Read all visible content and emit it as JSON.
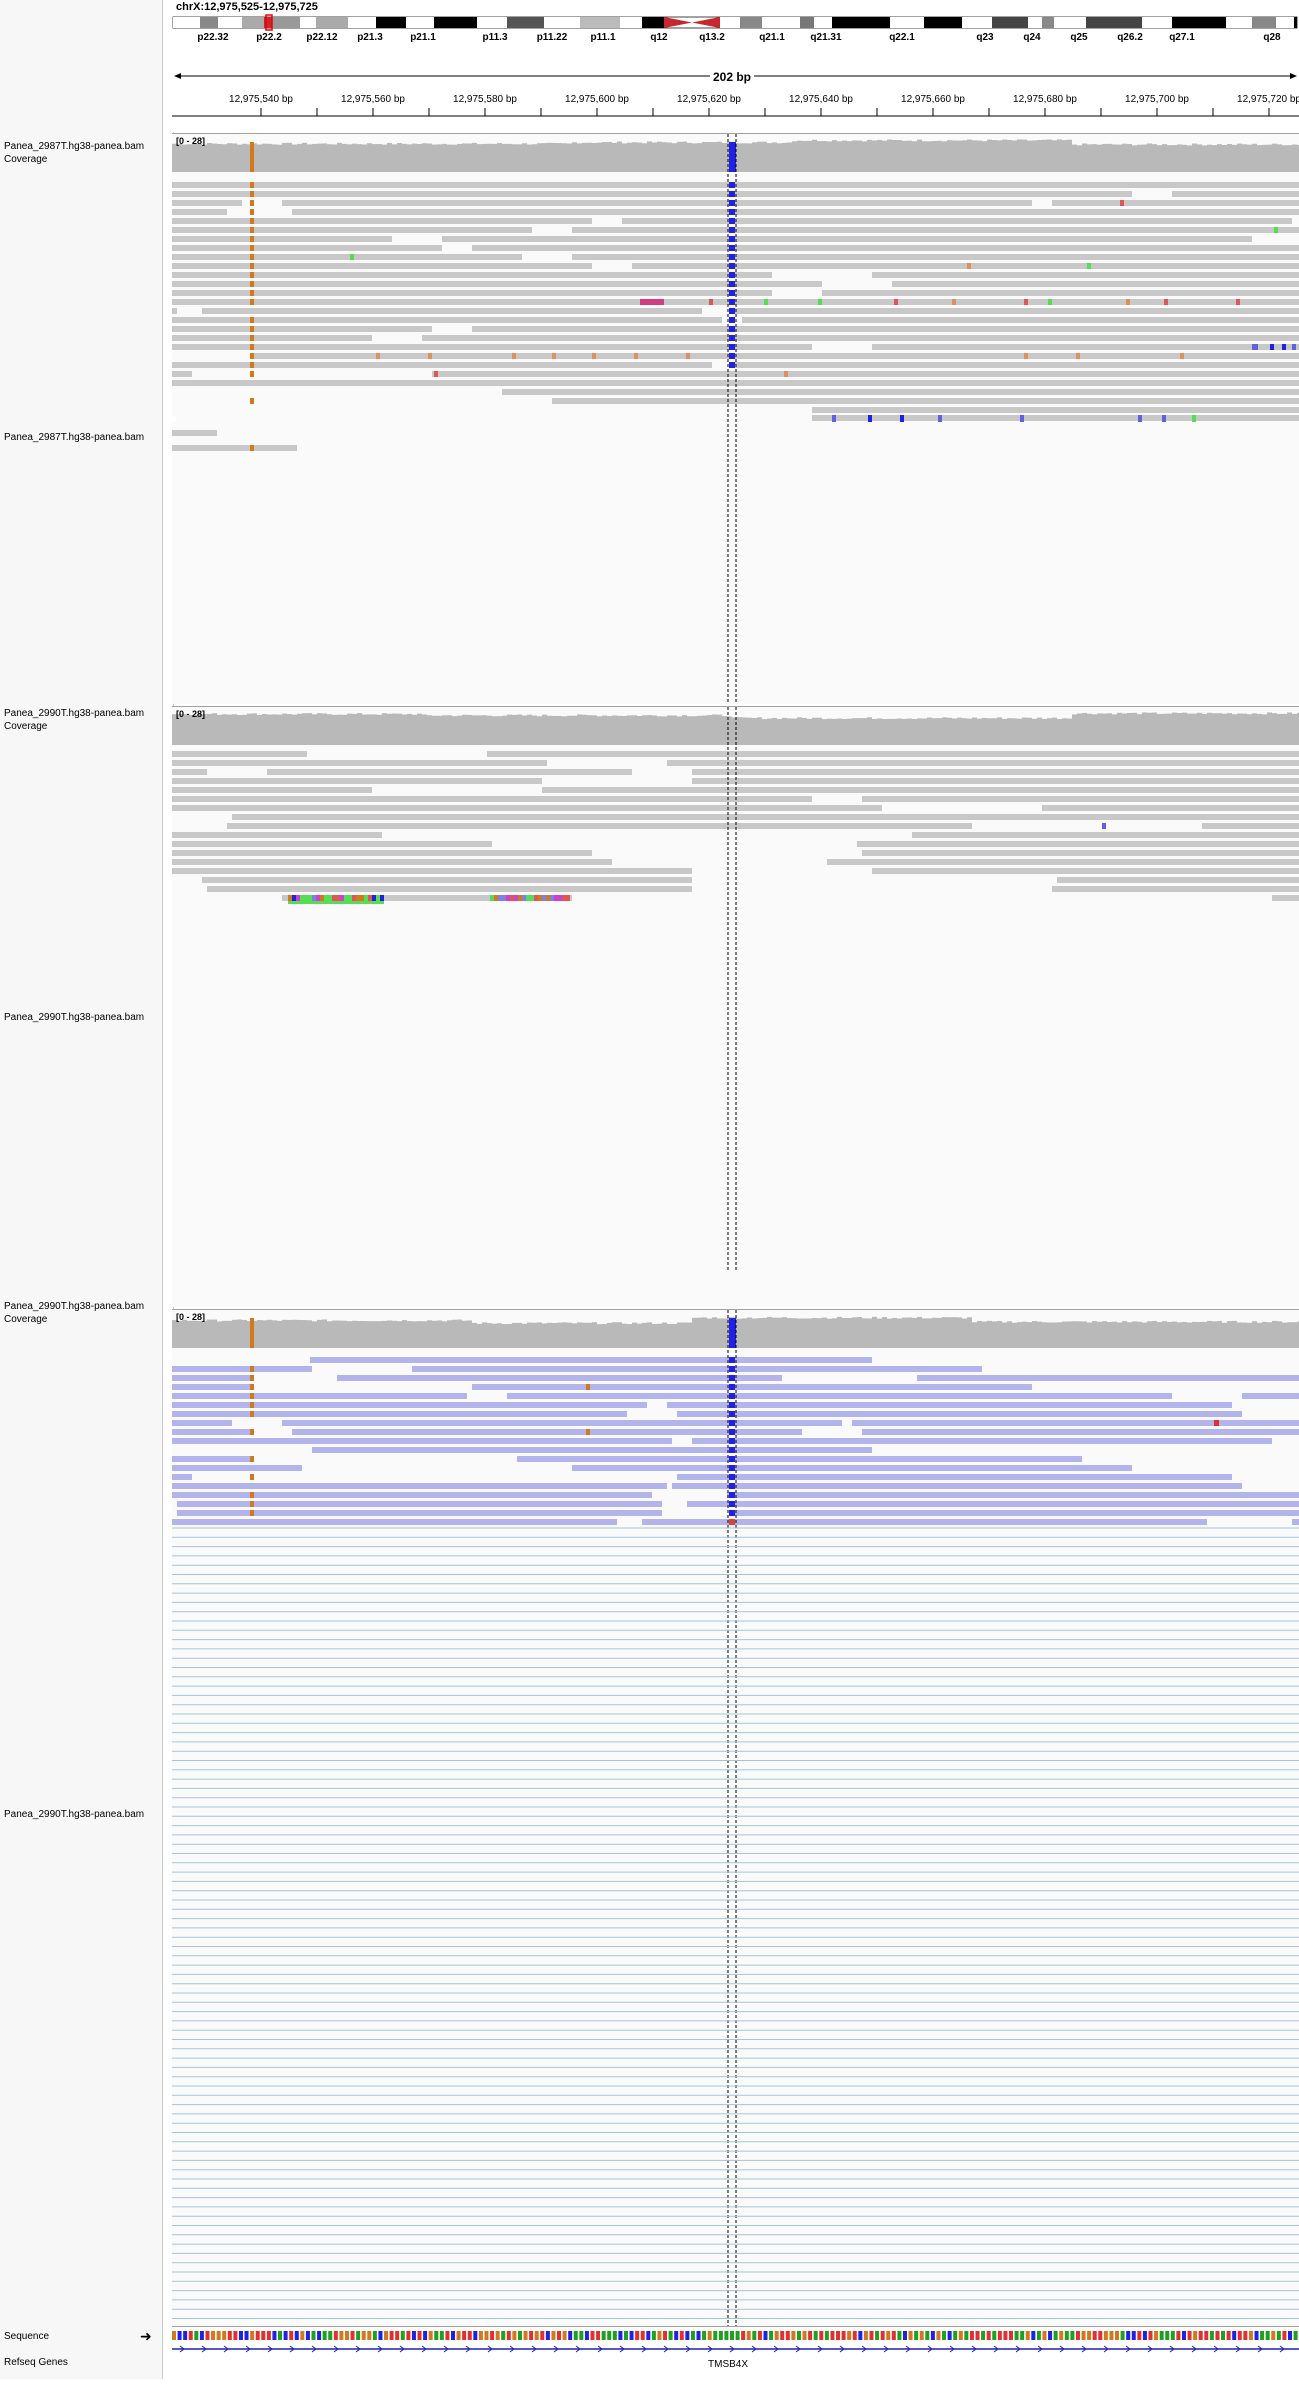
{
  "header": {
    "locus": "chrX:12,975,525-12,975,725",
    "span_label": "202 bp",
    "cytobands": [
      "p22.32",
      "p22.2",
      "p22.12",
      "p21.3",
      "p21.1",
      "p11.3",
      "p11.22",
      "p11.1",
      "q12",
      "q13.2",
      "q21.1",
      "q21.31",
      "q22.1",
      "q23",
      "q24",
      "q25",
      "q26.2",
      "q27.1",
      "q28"
    ],
    "ruler_ticks": [
      "12,975,540 bp",
      "12,975,560 bp",
      "12,975,580 bp",
      "12,975,600 bp",
      "12,975,620 bp",
      "12,975,640 bp",
      "12,975,660 bp",
      "12,975,680 bp",
      "12,975,700 bp",
      "12,975,720 bp"
    ]
  },
  "tracks": [
    {
      "coverage_label": "Panea_2987T.hg38-panea.bam Coverage",
      "range": "[0 - 28]",
      "bam_label": "Panea_2987T.hg38-panea.bam"
    },
    {
      "coverage_label": "Panea_2990T.hg38-panea.bam Coverage",
      "range": "[0 - 28]",
      "bam_label": "Panea_2990T.hg38-panea.bam"
    },
    {
      "coverage_label": "Panea_2990T.hg38-panea.bam Coverage",
      "range": "[0 - 28]",
      "bam_label": "Panea_2990T.hg38-panea.bam"
    }
  ],
  "bottom": {
    "sequence_label": "Sequence",
    "refseq_label": "Refseq Genes",
    "gene_name": "TMSB4X"
  },
  "colors": {
    "read_gray": "#c8c8c8",
    "read_purple": "#b4b4ec",
    "mismatch_blue": "#2020e6",
    "mismatch_orange": "#d2791e",
    "coverage_gray": "#b9b9b9",
    "centromere_red": "#c8282d"
  }
}
